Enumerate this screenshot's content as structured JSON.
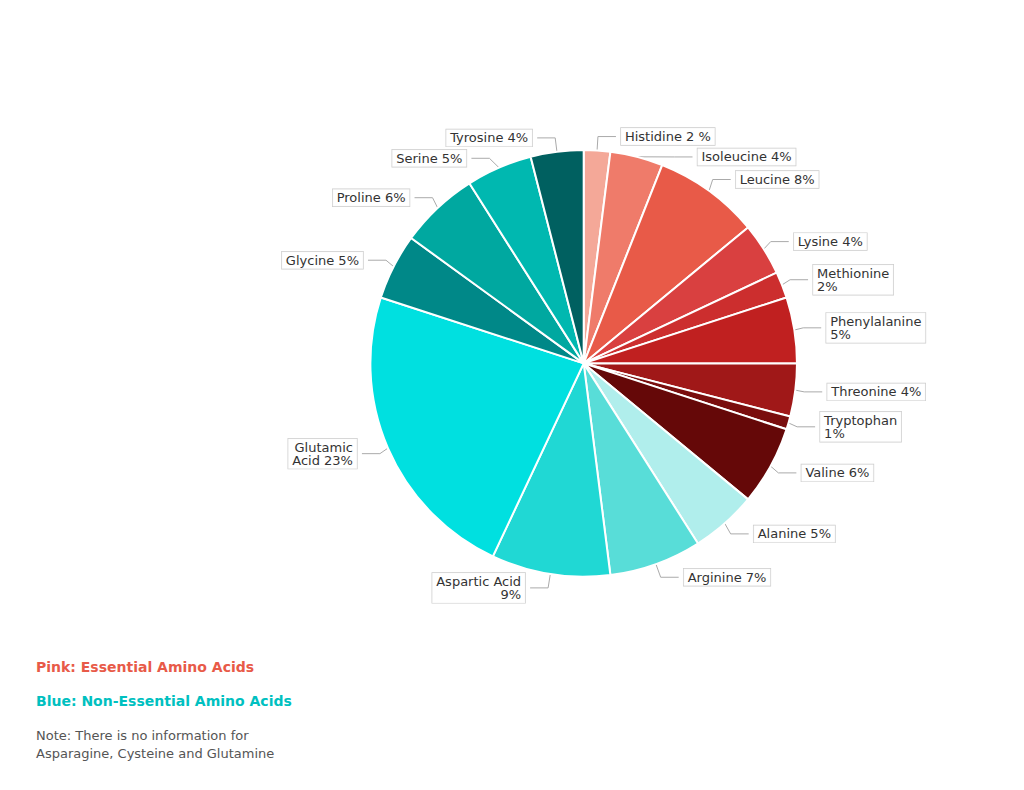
{
  "chart_data": {
    "type": "pie",
    "categories": [
      "Histidine 2 %",
      "Isoleucine 4%",
      "Leucine 8%",
      "Lysine 4%",
      "Methionine\n2%",
      "Phenylalanine\n5%",
      "Threonine 4%",
      "Tryptophan\n1%",
      "Valine 6%",
      "Alanine 5%",
      "Arginine 7%",
      "Aspartic Acid\n9%",
      "Glutamic\nAcid 23%",
      "Glycine 5%",
      "Proline 6%",
      "Serine 5%",
      "Tyrosine 4%"
    ],
    "values": [
      2,
      4,
      8,
      4,
      2,
      5,
      4,
      1,
      6,
      5,
      7,
      9,
      23,
      5,
      6,
      5,
      4
    ],
    "colors": [
      "#F4A898",
      "#EF7B6A",
      "#E85A48",
      "#D94040",
      "#CC2E2E",
      "#C02020",
      "#A01818",
      "#7A0E0E",
      "#650808",
      "#B0EEEC",
      "#58DDD8",
      "#20D8D4",
      "#00E0E0",
      "#008888",
      "#00A8A0",
      "#00B8B0",
      "#006060"
    ],
    "annotations": [
      {
        "text": "Pink: Essential Amino Acids",
        "color": "#E85A48"
      },
      {
        "text": "Blue: Non-Essential Amino Acids",
        "color": "#00C0C0"
      },
      {
        "text": "Note: There is no information for\nAsparagine, Cysteine and Glutamine",
        "color": "#555555"
      }
    ]
  }
}
